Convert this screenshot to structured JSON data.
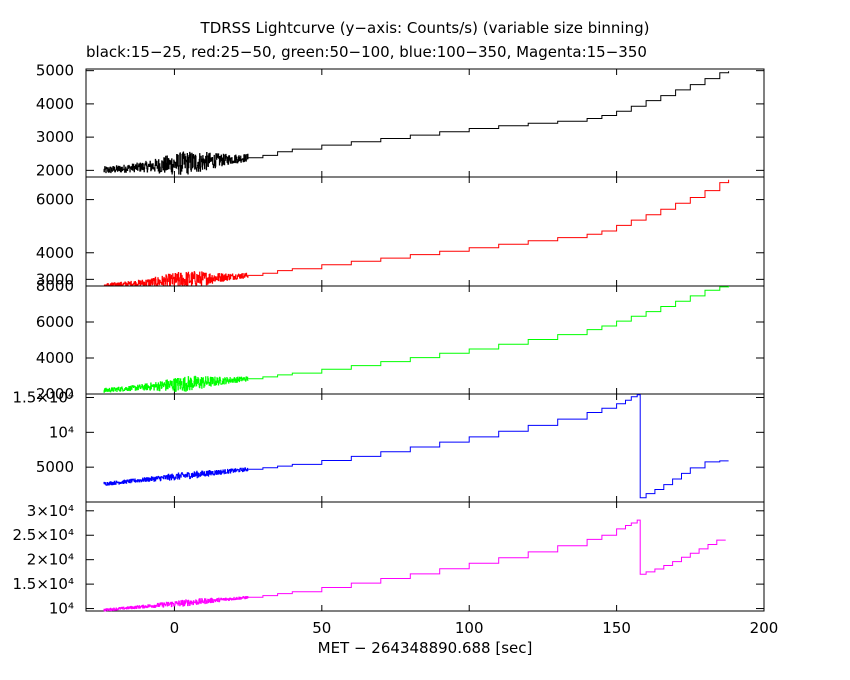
{
  "title": "TDRSS Lightcurve (y−axis: Counts/s) (variable size binning)",
  "subtitle": "black:15−25, red:25−50, green:50−100, blue:100−350, Magenta:15−350",
  "xlabel": "MET − 264348890.688 [sec]",
  "chart_data": {
    "type": "line",
    "step": true,
    "xlim": [
      -30,
      200
    ],
    "x_ticks": [
      0,
      50,
      100,
      150,
      200
    ],
    "x_tick_labels": [
      "0",
      "50",
      "100",
      "150",
      "200"
    ],
    "panels": [
      {
        "name": "black:15−25",
        "color": "#000000",
        "ylim": [
          1800,
          5050
        ],
        "y_ticks": [
          2000,
          3000,
          4000,
          5000
        ],
        "y_tick_labels": [
          "2000",
          "3000",
          "4000",
          "5000"
        ],
        "noise": {
          "x_start": -24,
          "x_end": 25,
          "amplitude_near_0": 350,
          "amplitude_far": 110,
          "baseline_start": 2000,
          "baseline_end": 2380
        },
        "points": [
          [
            25,
            2380
          ],
          [
            30,
            2450
          ],
          [
            35,
            2560
          ],
          [
            40,
            2640
          ],
          [
            50,
            2760
          ],
          [
            60,
            2860
          ],
          [
            70,
            2960
          ],
          [
            80,
            3060
          ],
          [
            90,
            3160
          ],
          [
            100,
            3260
          ],
          [
            110,
            3340
          ],
          [
            120,
            3420
          ],
          [
            130,
            3480
          ],
          [
            140,
            3560
          ],
          [
            145,
            3650
          ],
          [
            150,
            3780
          ],
          [
            155,
            3930
          ],
          [
            160,
            4100
          ],
          [
            165,
            4250
          ],
          [
            170,
            4420
          ],
          [
            175,
            4580
          ],
          [
            180,
            4760
          ],
          [
            185,
            4940
          ],
          [
            188,
            4980
          ]
        ]
      },
      {
        "name": "red:25−50",
        "color": "#ff0000",
        "ylim": [
          2750,
          6850
        ],
        "y_ticks": [
          3000,
          4000,
          6000
        ],
        "y_tick_labels": [
          "3000",
          "4000",
          "6000"
        ],
        "noise": {
          "x_start": -24,
          "x_end": 25,
          "amplitude_near_0": 320,
          "amplitude_far": 90,
          "baseline_start": 2760,
          "baseline_end": 3150
        },
        "points": [
          [
            25,
            3150
          ],
          [
            30,
            3230
          ],
          [
            35,
            3330
          ],
          [
            40,
            3400
          ],
          [
            50,
            3550
          ],
          [
            60,
            3680
          ],
          [
            70,
            3800
          ],
          [
            80,
            3930
          ],
          [
            90,
            4060
          ],
          [
            100,
            4190
          ],
          [
            110,
            4320
          ],
          [
            120,
            4450
          ],
          [
            130,
            4570
          ],
          [
            140,
            4700
          ],
          [
            145,
            4820
          ],
          [
            150,
            5030
          ],
          [
            155,
            5230
          ],
          [
            160,
            5430
          ],
          [
            165,
            5640
          ],
          [
            170,
            5860
          ],
          [
            175,
            6080
          ],
          [
            180,
            6340
          ],
          [
            185,
            6640
          ],
          [
            188,
            6750
          ]
        ]
      },
      {
        "name": "green:50−100",
        "color": "#00ff00",
        "ylim": [
          2000,
          8000
        ],
        "y_ticks": [
          2000,
          4000,
          6000,
          8000
        ],
        "y_tick_labels": [
          "2000",
          "4000",
          "6000",
          "8000"
        ],
        "noise": {
          "x_start": -24,
          "x_end": 25,
          "amplitude_near_0": 420,
          "amplitude_far": 120,
          "baseline_start": 2200,
          "baseline_end": 2850
        },
        "points": [
          [
            25,
            2850
          ],
          [
            30,
            2950
          ],
          [
            35,
            3060
          ],
          [
            40,
            3160
          ],
          [
            50,
            3370
          ],
          [
            60,
            3580
          ],
          [
            70,
            3800
          ],
          [
            80,
            4020
          ],
          [
            90,
            4260
          ],
          [
            100,
            4500
          ],
          [
            110,
            4760
          ],
          [
            120,
            5030
          ],
          [
            130,
            5300
          ],
          [
            140,
            5580
          ],
          [
            145,
            5780
          ],
          [
            150,
            6050
          ],
          [
            155,
            6320
          ],
          [
            160,
            6580
          ],
          [
            165,
            6860
          ],
          [
            170,
            7150
          ],
          [
            175,
            7450
          ],
          [
            180,
            7760
          ],
          [
            185,
            7950
          ],
          [
            188,
            8000
          ]
        ]
      },
      {
        "name": "blue:100−350",
        "color": "#0000ff",
        "ylim": [
          0,
          15500
        ],
        "y_ticks": [
          5000,
          10000,
          15000
        ],
        "y_tick_labels": [
          "5000",
          "10⁴",
          "1.5×10⁴"
        ],
        "noise": {
          "x_start": -24,
          "x_end": 25,
          "amplitude_near_0": 500,
          "amplitude_far": 250,
          "baseline_start": 2600,
          "baseline_end": 4700
        },
        "points": [
          [
            25,
            4700
          ],
          [
            30,
            4920
          ],
          [
            35,
            5150
          ],
          [
            40,
            5400
          ],
          [
            50,
            5950
          ],
          [
            60,
            6550
          ],
          [
            70,
            7200
          ],
          [
            80,
            7900
          ],
          [
            90,
            8600
          ],
          [
            100,
            9350
          ],
          [
            110,
            10150
          ],
          [
            120,
            11000
          ],
          [
            130,
            11900
          ],
          [
            140,
            12850
          ],
          [
            145,
            13450
          ],
          [
            150,
            14100
          ],
          [
            153,
            14600
          ],
          [
            155,
            15100
          ],
          [
            157,
            15400
          ],
          [
            158,
            600
          ],
          [
            160,
            1200
          ],
          [
            163,
            1800
          ],
          [
            166,
            2500
          ],
          [
            169,
            3300
          ],
          [
            172,
            4100
          ],
          [
            175,
            4900
          ],
          [
            180,
            5750
          ],
          [
            185,
            5900
          ],
          [
            188,
            5900
          ]
        ]
      },
      {
        "name": "Magenta:15−350",
        "color": "#ff00ff",
        "ylim": [
          9500,
          31800
        ],
        "y_ticks": [
          10000,
          15000,
          20000,
          25000,
          30000
        ],
        "y_tick_labels": [
          "10⁴",
          "1.5×10⁴",
          "2×10⁴",
          "2.5×10⁴",
          "3×10⁴"
        ],
        "noise": {
          "x_start": -24,
          "x_end": 25,
          "amplitude_near_0": 650,
          "amplitude_far": 250,
          "baseline_start": 9700,
          "baseline_end": 12300
        },
        "points": [
          [
            25,
            12300
          ],
          [
            30,
            12650
          ],
          [
            35,
            13050
          ],
          [
            40,
            13450
          ],
          [
            50,
            14300
          ],
          [
            60,
            15200
          ],
          [
            70,
            16150
          ],
          [
            80,
            17100
          ],
          [
            90,
            18150
          ],
          [
            100,
            19250
          ],
          [
            110,
            20400
          ],
          [
            120,
            21600
          ],
          [
            130,
            22850
          ],
          [
            140,
            24150
          ],
          [
            145,
            25000
          ],
          [
            150,
            26300
          ],
          [
            153,
            27000
          ],
          [
            155,
            27500
          ],
          [
            157,
            28100
          ],
          [
            158,
            17000
          ],
          [
            160,
            17500
          ],
          [
            163,
            18100
          ],
          [
            166,
            18800
          ],
          [
            169,
            19600
          ],
          [
            172,
            20500
          ],
          [
            175,
            21300
          ],
          [
            178,
            22200
          ],
          [
            181,
            23100
          ],
          [
            184,
            24000
          ],
          [
            187,
            24000
          ]
        ]
      }
    ]
  }
}
